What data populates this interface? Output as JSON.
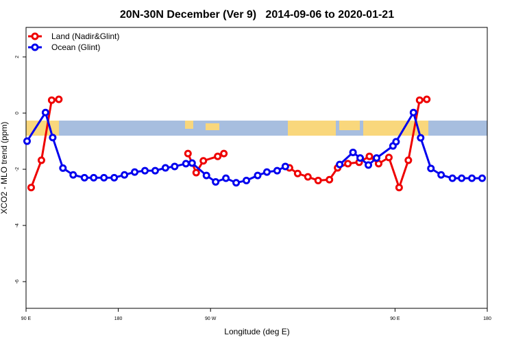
{
  "chart_data": {
    "type": "line",
    "title": "20N-30N December (Ver 9)   2014-09-06 to 2020-01-21",
    "x_label": "Longitude (deg E)",
    "y_label": "XCO2 - MLO trend (ppm)",
    "xlim": [
      90,
      540
    ],
    "ylim": [
      -6.95,
      3.05
    ],
    "xticks": [
      {
        "value": 90,
        "label": "90 E"
      },
      {
        "value": 180,
        "label": "180"
      },
      {
        "value": 270,
        "label": "90 W"
      },
      {
        "value": 450,
        "label": "90 E"
      },
      {
        "value": 540,
        "label": "180"
      }
    ],
    "yticks": [
      2,
      0,
      -2,
      -4,
      -6
    ],
    "legend": "top-left",
    "series": [
      {
        "name": "Land (Nadir&Glint)",
        "color": "#ee0000",
        "x": [
          95,
          105,
          115,
          122,
          null,
          248,
          256,
          263,
          277,
          283,
          null,
          347,
          355,
          365,
          375,
          386,
          394,
          404,
          415,
          425,
          434,
          444,
          454,
          463,
          474,
          481
        ],
        "values": [
          -2.65,
          -1.68,
          0.46,
          0.49,
          null,
          -1.44,
          -2.12,
          -1.7,
          -1.54,
          -1.44,
          null,
          -1.95,
          -2.15,
          -2.27,
          -2.4,
          -2.37,
          -1.95,
          -1.8,
          -1.75,
          -1.54,
          -1.8,
          -1.58,
          -2.65,
          -1.68,
          0.46,
          0.49
        ]
      },
      {
        "name": "Ocean (Glint)",
        "color": "#0000ee",
        "x": [
          91,
          109,
          116,
          126,
          136,
          147,
          156,
          166,
          176,
          186,
          196,
          206,
          216,
          226,
          235,
          246,
          252,
          266,
          275,
          285,
          295,
          305,
          316,
          325,
          335,
          343,
          null,
          396,
          409,
          416,
          424,
          432,
          448,
          451,
          468,
          475,
          485,
          495,
          506,
          515,
          525,
          535
        ],
        "values": [
          -1.0,
          0.02,
          -0.87,
          -1.96,
          -2.2,
          -2.3,
          -2.3,
          -2.3,
          -2.3,
          -2.2,
          -2.1,
          -2.05,
          -2.05,
          -1.95,
          -1.9,
          -1.8,
          -1.78,
          -2.22,
          -2.45,
          -2.32,
          -2.48,
          -2.4,
          -2.22,
          -2.1,
          -2.05,
          -1.9,
          null,
          -1.83,
          -1.4,
          -1.6,
          -1.85,
          -1.6,
          -1.17,
          -1.02,
          0.02,
          -0.88,
          -1.97,
          -2.2,
          -2.32,
          -2.32,
          -2.32,
          -2.32
        ]
      }
    ]
  }
}
